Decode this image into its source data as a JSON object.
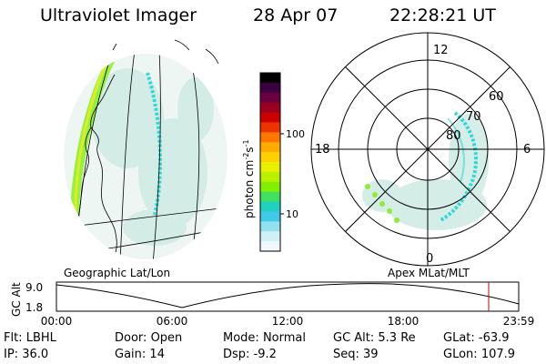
{
  "header": {
    "title": "Ultraviolet Imager",
    "date": "28 Apr 07",
    "time": "22:28:21 UT"
  },
  "colorbar": {
    "label": "photon cm",
    "label_sup1": "-2",
    "label_s": "s",
    "label_sup2": "-1",
    "ticks": [
      "100",
      "10"
    ],
    "colors": [
      "#000000",
      "#3a0040",
      "#6b0040",
      "#9a0020",
      "#cc0000",
      "#ee3300",
      "#ff7700",
      "#ffaa00",
      "#ffd000",
      "#e8f000",
      "#b8f000",
      "#80f000",
      "#40e060",
      "#20d0c0",
      "#40c8e8",
      "#90e0f0",
      "#d0f0f8",
      "#f0f8ff"
    ]
  },
  "polar": {
    "hour_labels": {
      "top": "12",
      "left": "18",
      "right": "6",
      "bottom": "0"
    },
    "lat_labels": [
      "60",
      "70",
      "80"
    ]
  },
  "panels": {
    "geo_label": "Geographic Lat/Lon",
    "apex_label": "Apex MLat/MLT"
  },
  "altitude_plot": {
    "ylabel": "GC Alt",
    "yticks": [
      "9.0",
      "1.8"
    ],
    "xticks": [
      "00:00",
      "06:00",
      "12:00",
      "18:00",
      "23:59"
    ],
    "marker_color": "#cc0000"
  },
  "status": {
    "row1": [
      {
        "key": "Flt:",
        "value": "LBHL"
      },
      {
        "key": "Door:",
        "value": "Open"
      },
      {
        "key": "Mode:",
        "value": "Normal"
      },
      {
        "key": "GC Alt:",
        "value": "5.3 Re"
      },
      {
        "key": "GLat:",
        "value": "-63.9"
      }
    ],
    "row2": [
      {
        "key": "IP:",
        "value": "36.0"
      },
      {
        "key": "Gain:",
        "value": "14"
      },
      {
        "key": "Dsp:",
        "value": "-9.2"
      },
      {
        "key": "Seq:",
        "value": "39"
      },
      {
        "key": "GLon:",
        "value": "107.9"
      }
    ]
  },
  "accent_colors": {
    "aurora_main": "#90ee30",
    "aurora_cyan": "#30d8d8",
    "diffuse": "#c8e8e0"
  }
}
